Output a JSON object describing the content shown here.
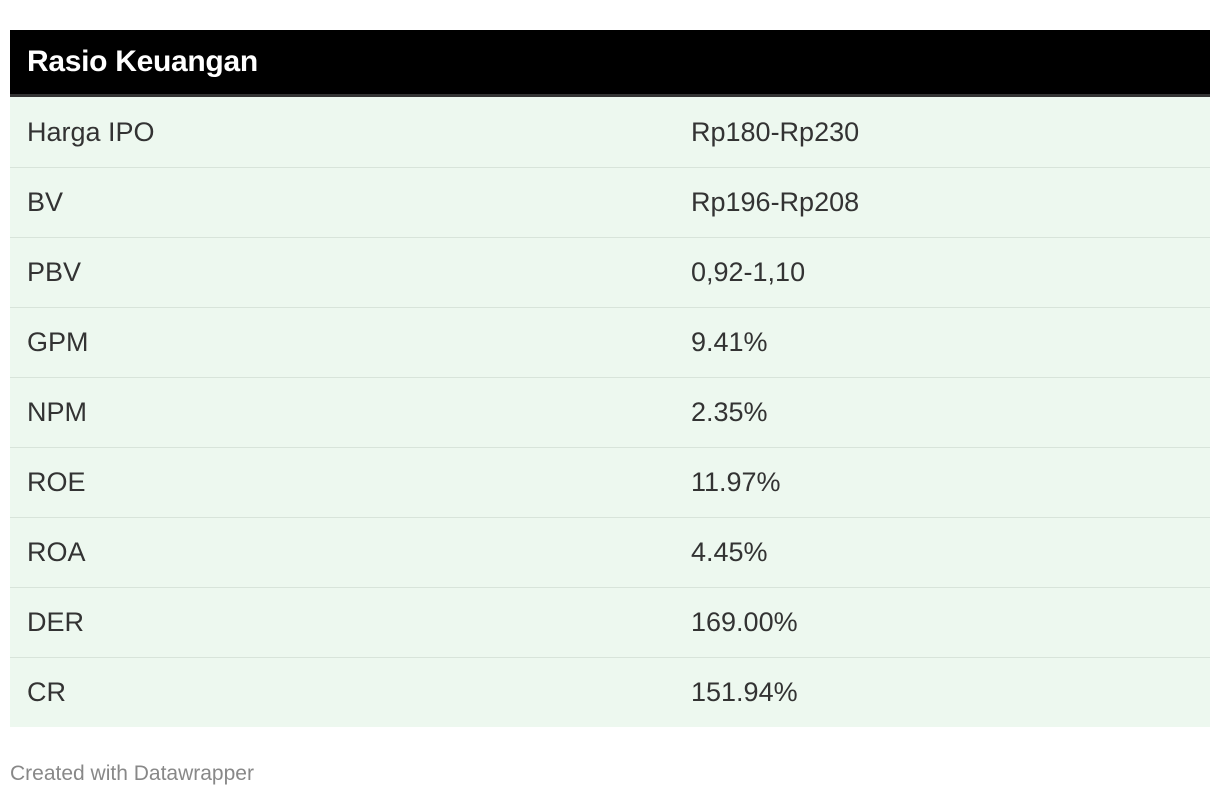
{
  "chart_data": {
    "type": "table",
    "title": "Rasio Keuangan",
    "rows": [
      {
        "label": "Harga IPO",
        "value": "Rp180-Rp230"
      },
      {
        "label": "BV",
        "value": "Rp196-Rp208"
      },
      {
        "label": "PBV",
        "value": "0,92-1,10"
      },
      {
        "label": "GPM",
        "value": "9.41%"
      },
      {
        "label": "NPM",
        "value": "2.35%"
      },
      {
        "label": "ROE",
        "value": "11.97%"
      },
      {
        "label": "ROA",
        "value": "4.45%"
      },
      {
        "label": "DER",
        "value": "169.00%"
      },
      {
        "label": "CR",
        "value": "151.94%"
      }
    ]
  },
  "footer": {
    "credit": "Created with Datawrapper"
  },
  "colors": {
    "header_bg": "#000000",
    "header_text": "#ffffff",
    "row_bg": "#edf8ef",
    "row_text": "#333333",
    "divider": "#d8e4da",
    "footer_text": "#888888"
  }
}
